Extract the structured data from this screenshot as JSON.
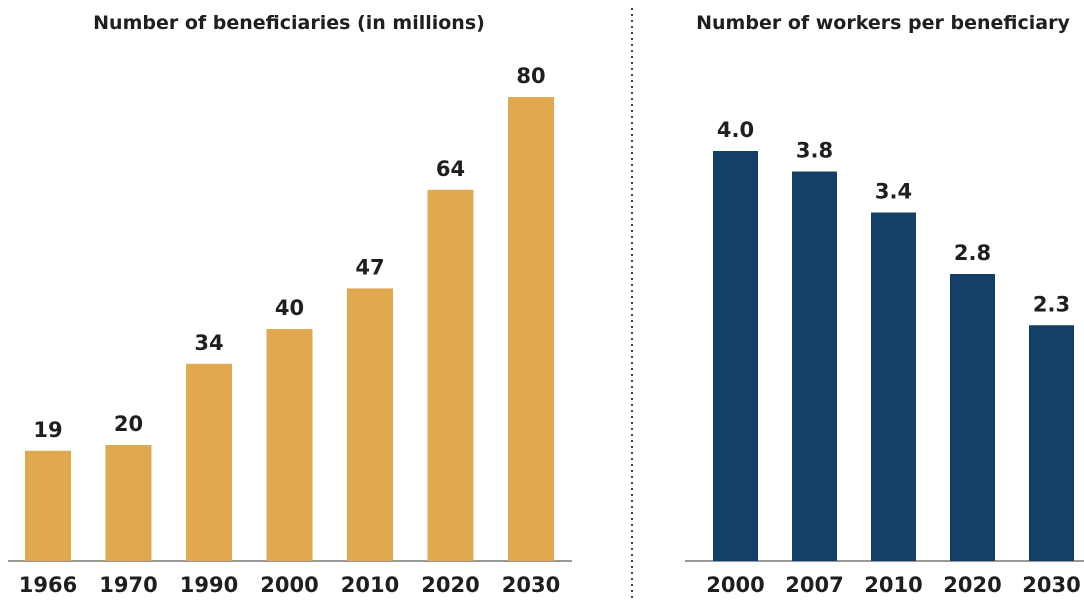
{
  "chart_data": [
    {
      "type": "bar",
      "title": "Number of beneficiaries (in millions)",
      "categories": [
        "1966",
        "1970",
        "1990",
        "2000",
        "2010",
        "2020",
        "2030"
      ],
      "values": [
        19,
        20,
        34,
        40,
        47,
        64,
        80
      ],
      "value_labels": [
        "19",
        "20",
        "34",
        "40",
        "47",
        "64",
        "80"
      ],
      "ylim": [
        0,
        80
      ],
      "grid": false,
      "color": "#e0a94f"
    },
    {
      "type": "bar",
      "title": "Number of workers per beneficiary",
      "categories": [
        "2000",
        "2007",
        "2010",
        "2020",
        "2030"
      ],
      "values": [
        4.0,
        3.8,
        3.4,
        2.8,
        2.3
      ],
      "value_labels": [
        "4.0",
        "3.8",
        "3.4",
        "2.8",
        "2.3"
      ],
      "ylim": [
        0,
        4
      ],
      "grid": false,
      "color": "#143f66"
    }
  ]
}
